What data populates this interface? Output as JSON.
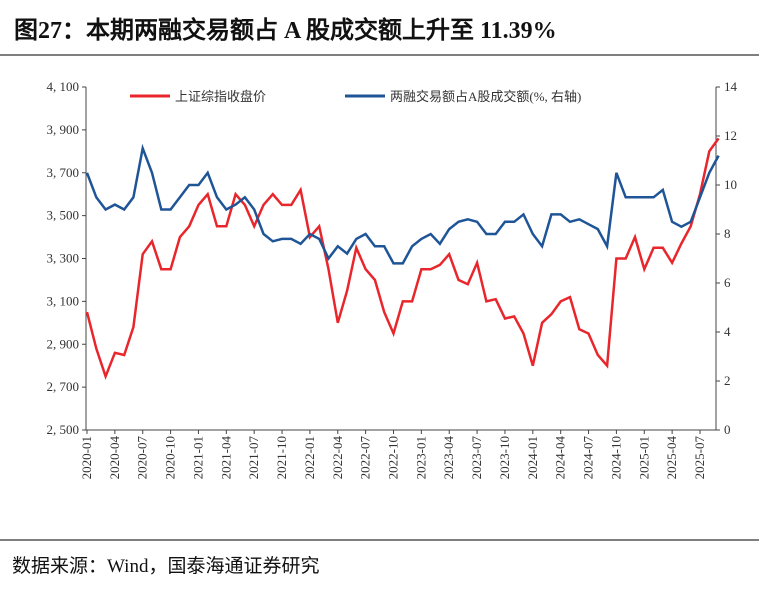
{
  "chart_data": {
    "type": "line",
    "title": "图27：本期两融交易额占 A 股成交额上升至 11.39%",
    "source": "数据来源：Wind，国泰海通证券研究",
    "x": [
      "2020-01",
      "2020-02",
      "2020-03",
      "2020-04",
      "2020-05",
      "2020-06",
      "2020-07",
      "2020-08",
      "2020-09",
      "2020-10",
      "2020-11",
      "2020-12",
      "2021-01",
      "2021-02",
      "2021-03",
      "2021-04",
      "2021-05",
      "2021-06",
      "2021-07",
      "2021-08",
      "2021-09",
      "2021-10",
      "2021-11",
      "2021-12",
      "2022-01",
      "2022-02",
      "2022-03",
      "2022-04",
      "2022-05",
      "2022-06",
      "2022-07",
      "2022-08",
      "2022-09",
      "2022-10",
      "2022-11",
      "2022-12",
      "2023-01",
      "2023-02",
      "2023-03",
      "2023-04",
      "2023-05",
      "2023-06",
      "2023-07",
      "2023-08",
      "2023-09",
      "2023-10",
      "2023-11",
      "2023-12",
      "2024-01",
      "2024-02",
      "2024-03",
      "2024-04",
      "2024-05",
      "2024-06",
      "2024-07",
      "2024-08",
      "2024-09",
      "2024-10",
      "2024-11",
      "2024-12",
      "2025-01",
      "2025-02",
      "2025-03",
      "2025-04",
      "2025-05",
      "2025-06",
      "2025-07",
      "2025-08",
      "2025-09"
    ],
    "xticks": [
      "2020-01",
      "2020-04",
      "2020-07",
      "2020-10",
      "2021-01",
      "2021-04",
      "2021-07",
      "2021-10",
      "2022-01",
      "2022-04",
      "2022-07",
      "2022-10",
      "2023-01",
      "2023-04",
      "2023-07",
      "2023-10",
      "2024-01",
      "2024-04",
      "2024-07",
      "2024-10",
      "2025-01",
      "2025-04",
      "2025-07"
    ],
    "series": [
      {
        "name": "上证综指收盘价",
        "color": "#e8262b",
        "values": [
          3050,
          2880,
          2750,
          2860,
          2850,
          2980,
          3320,
          3380,
          3250,
          3250,
          3400,
          3450,
          3550,
          3600,
          3450,
          3450,
          3600,
          3550,
          3450,
          3550,
          3600,
          3550,
          3550,
          3620,
          3400,
          3450,
          3250,
          3000,
          3150,
          3350,
          3250,
          3200,
          3050,
          2950,
          3100,
          3100,
          3250,
          3250,
          3270,
          3320,
          3200,
          3180,
          3280,
          3100,
          3110,
          3020,
          3030,
          2950,
          2800,
          3000,
          3040,
          3100,
          3120,
          2970,
          2950,
          2850,
          2800,
          3300,
          3300,
          3400,
          3250,
          3350,
          3350,
          3280,
          3370,
          3450,
          3600,
          3800,
          3860
        ]
      },
      {
        "name": "两融交易额占A股成交额(%, 右轴)",
        "color": "#1f5597",
        "axis": "y2",
        "values": [
          10.5,
          9.5,
          9.0,
          9.2,
          9.0,
          9.5,
          11.5,
          10.5,
          9.0,
          9.0,
          9.5,
          10.0,
          10.0,
          10.5,
          9.5,
          9.0,
          9.2,
          9.5,
          9.0,
          8.0,
          7.7,
          7.8,
          7.8,
          7.6,
          8.0,
          7.8,
          7.0,
          7.5,
          7.2,
          7.8,
          8.0,
          7.5,
          7.5,
          6.8,
          6.8,
          7.5,
          7.8,
          8.0,
          7.6,
          8.2,
          8.5,
          8.6,
          8.5,
          8.0,
          8.0,
          8.5,
          8.5,
          8.8,
          8.0,
          7.5,
          8.8,
          8.8,
          8.5,
          8.6,
          8.4,
          8.2,
          7.5,
          10.5,
          9.5,
          9.5,
          9.5,
          9.5,
          9.8,
          8.5,
          8.3,
          8.5,
          9.5,
          10.5,
          11.2
        ]
      }
    ],
    "ylim": [
      2500,
      4100
    ],
    "yticks": [
      {
        "value": 2500,
        "label": "2, 500"
      },
      {
        "value": 2700,
        "label": "2, 700"
      },
      {
        "value": 2900,
        "label": "2, 900"
      },
      {
        "value": 3100,
        "label": "3, 100"
      },
      {
        "value": 3300,
        "label": "3, 300"
      },
      {
        "value": 3500,
        "label": "3, 500"
      },
      {
        "value": 3700,
        "label": "3, 700"
      },
      {
        "value": 3900,
        "label": "3, 900"
      },
      {
        "value": 4100,
        "label": "4, 100"
      }
    ],
    "y2lim": [
      0,
      14
    ],
    "y2ticks": [
      0,
      2,
      4,
      6,
      8,
      10,
      12,
      14
    ]
  }
}
